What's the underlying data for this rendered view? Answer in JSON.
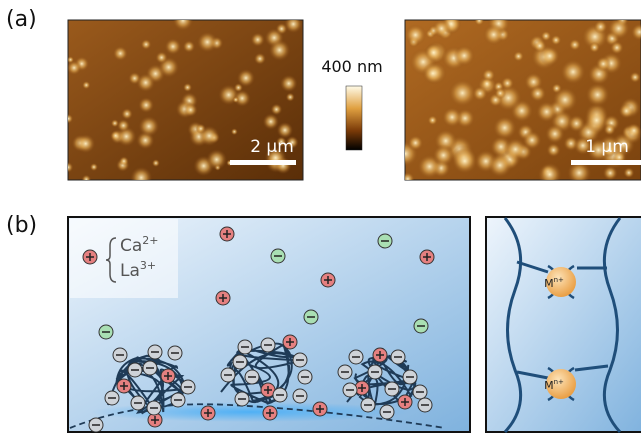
{
  "panel_a": {
    "label": "(a)",
    "colorbar_label": "400 nm",
    "images": [
      {
        "scale_bar": "2 µm"
      },
      {
        "scale_bar": "1 µm"
      }
    ]
  },
  "panel_b": {
    "label": "(b)",
    "legend": [
      {
        "element": "Ca",
        "charge": "2+"
      },
      {
        "element": "La",
        "charge": "3+"
      }
    ],
    "complex_labels": [
      {
        "element": "M",
        "charge": "n+"
      },
      {
        "element": "M",
        "charge": "n+"
      }
    ]
  }
}
